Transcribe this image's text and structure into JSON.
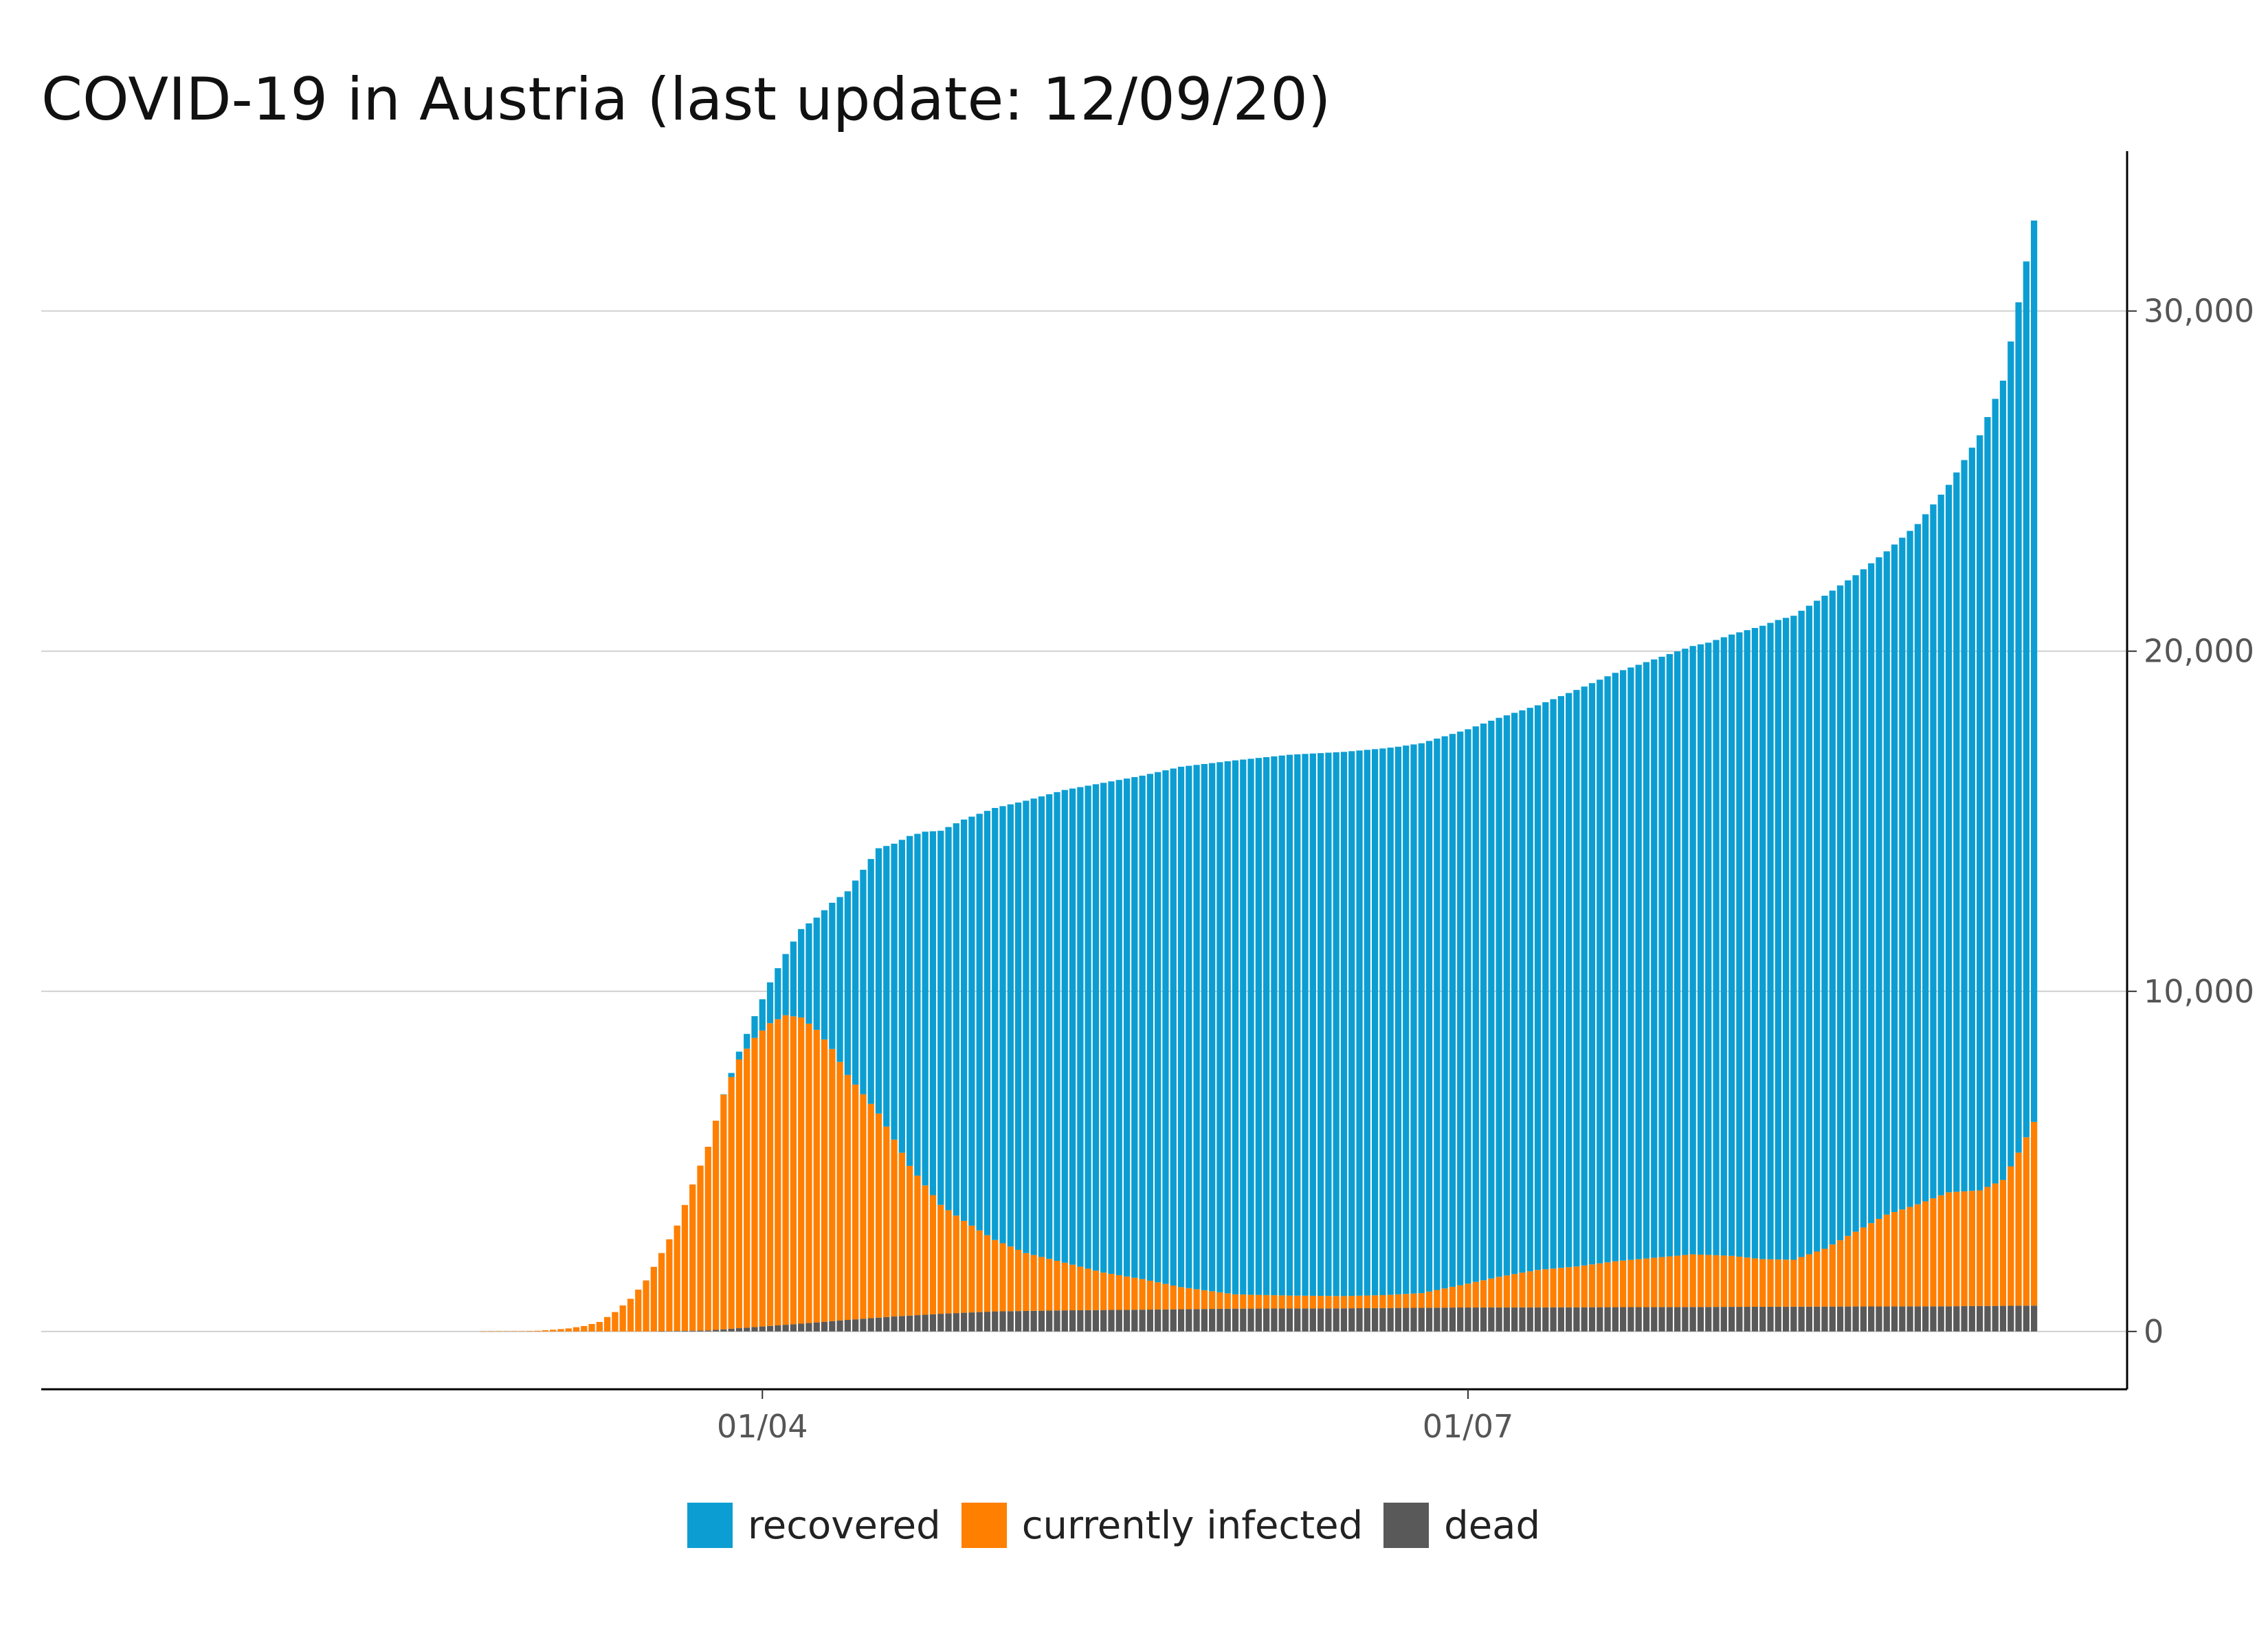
{
  "chart_data": {
    "type": "bar",
    "stacked": true,
    "title": "COVID-19 in Austria (last update: 12/09/20)",
    "xlabel": "",
    "ylabel": "",
    "x_start": "2020-01-01",
    "x_tick_labels": [
      {
        "date": "2020-04-01",
        "label": "01/04"
      },
      {
        "date": "2020-07-01",
        "label": "01/07"
      }
    ],
    "y_ticks": [
      0,
      10000,
      20000,
      30000
    ],
    "y_tick_labels": [
      "0",
      "10,000",
      "20,000",
      "30,000"
    ],
    "ylim": [
      -1700,
      34700
    ],
    "xlim": [
      "2019-12-30",
      "2020-09-24"
    ],
    "y_axis_position": "right",
    "grid": "horizontal",
    "legend_position": "bottom",
    "series": [
      {
        "name": "dead",
        "color": "#595959",
        "points": [
          [
            "2020-03-19",
            6
          ],
          [
            "2020-03-25",
            30
          ],
          [
            "2020-03-31",
            130
          ],
          [
            "2020-04-06",
            230
          ],
          [
            "2020-04-12",
            340
          ],
          [
            "2020-04-18",
            440
          ],
          [
            "2020-04-24",
            520
          ],
          [
            "2020-05-01",
            590
          ],
          [
            "2020-05-10",
            620
          ],
          [
            "2020-05-20",
            640
          ],
          [
            "2020-06-01",
            670
          ],
          [
            "2020-06-15",
            680
          ],
          [
            "2020-07-01",
            705
          ],
          [
            "2020-07-15",
            710
          ],
          [
            "2020-08-01",
            720
          ],
          [
            "2020-08-15",
            730
          ],
          [
            "2020-09-01",
            740
          ],
          [
            "2020-09-12",
            760
          ]
        ]
      },
      {
        "name": "currently infected",
        "color": "#ff7f00",
        "points": [
          [
            "2020-02-25",
            2
          ],
          [
            "2020-03-01",
            10
          ],
          [
            "2020-03-03",
            20
          ],
          [
            "2020-03-05",
            50
          ],
          [
            "2020-03-07",
            90
          ],
          [
            "2020-03-09",
            160
          ],
          [
            "2020-03-11",
            280
          ],
          [
            "2020-03-13",
            570
          ],
          [
            "2020-03-15",
            960
          ],
          [
            "2020-03-17",
            1500
          ],
          [
            "2020-03-19",
            2300
          ],
          [
            "2020-03-21",
            3100
          ],
          [
            "2020-03-23",
            4300
          ],
          [
            "2020-03-25",
            5400
          ],
          [
            "2020-03-27",
            6900
          ],
          [
            "2020-03-28",
            7400
          ],
          [
            "2020-03-29",
            7900
          ],
          [
            "2020-03-31",
            8500
          ],
          [
            "2020-04-02",
            8900
          ],
          [
            "2020-04-04",
            9100
          ],
          [
            "2020-04-06",
            9000
          ],
          [
            "2020-04-08",
            8600
          ],
          [
            "2020-04-10",
            8000
          ],
          [
            "2020-04-12",
            7200
          ],
          [
            "2020-04-14",
            6600
          ],
          [
            "2020-04-16",
            6000
          ],
          [
            "2020-04-18",
            5200
          ],
          [
            "2020-04-20",
            4400
          ],
          [
            "2020-04-22",
            3800
          ],
          [
            "2020-04-24",
            3200
          ],
          [
            "2020-04-27",
            2700
          ],
          [
            "2020-05-01",
            2100
          ],
          [
            "2020-05-05",
            1700
          ],
          [
            "2020-05-10",
            1400
          ],
          [
            "2020-05-15",
            1100
          ],
          [
            "2020-05-20",
            900
          ],
          [
            "2020-05-25",
            650
          ],
          [
            "2020-06-01",
            420
          ],
          [
            "2020-06-08",
            380
          ],
          [
            "2020-06-15",
            360
          ],
          [
            "2020-06-20",
            380
          ],
          [
            "2020-06-25",
            430
          ],
          [
            "2020-07-01",
            700
          ],
          [
            "2020-07-05",
            900
          ],
          [
            "2020-07-10",
            1100
          ],
          [
            "2020-07-15",
            1200
          ],
          [
            "2020-07-20",
            1350
          ],
          [
            "2020-07-25",
            1450
          ],
          [
            "2020-07-30",
            1550
          ],
          [
            "2020-08-04",
            1500
          ],
          [
            "2020-08-08",
            1400
          ],
          [
            "2020-08-12",
            1380
          ],
          [
            "2020-08-16",
            1700
          ],
          [
            "2020-08-20",
            2200
          ],
          [
            "2020-08-24",
            2700
          ],
          [
            "2020-08-28",
            3000
          ],
          [
            "2020-09-01",
            3350
          ],
          [
            "2020-09-05",
            3400
          ],
          [
            "2020-09-08",
            3700
          ],
          [
            "2020-09-10",
            4500
          ],
          [
            "2020-09-12",
            5400
          ]
        ]
      },
      {
        "name": "recovered",
        "color": "#0c9ed2",
        "points": [
          [
            "2020-03-27",
            10
          ],
          [
            "2020-03-29",
            230
          ],
          [
            "2020-03-31",
            640
          ],
          [
            "2020-04-02",
            1200
          ],
          [
            "2020-04-04",
            1800
          ],
          [
            "2020-04-06",
            2600
          ],
          [
            "2020-04-08",
            3300
          ],
          [
            "2020-04-10",
            4300
          ],
          [
            "2020-04-12",
            5400
          ],
          [
            "2020-04-14",
            6600
          ],
          [
            "2020-04-16",
            7800
          ],
          [
            "2020-04-18",
            8700
          ],
          [
            "2020-04-20",
            9700
          ],
          [
            "2020-04-22",
            10400
          ],
          [
            "2020-04-24",
            11000
          ],
          [
            "2020-04-27",
            11800
          ],
          [
            "2020-05-01",
            12700
          ],
          [
            "2020-05-05",
            13300
          ],
          [
            "2020-05-10",
            13900
          ],
          [
            "2020-05-15",
            14400
          ],
          [
            "2020-05-20",
            14800
          ],
          [
            "2020-05-25",
            15300
          ],
          [
            "2020-06-01",
            15700
          ],
          [
            "2020-06-08",
            15900
          ],
          [
            "2020-06-15",
            16000
          ],
          [
            "2020-06-22",
            16100
          ],
          [
            "2020-07-01",
            16300
          ],
          [
            "2020-07-10",
            16600
          ],
          [
            "2020-07-20",
            17300
          ],
          [
            "2020-08-01",
            18000
          ],
          [
            "2020-08-10",
            18800
          ],
          [
            "2020-08-16",
            19200
          ],
          [
            "2020-08-20",
            19300
          ],
          [
            "2020-08-24",
            19500
          ],
          [
            "2020-08-28",
            20000
          ],
          [
            "2020-09-01",
            20800
          ],
          [
            "2020-09-05",
            22200
          ],
          [
            "2020-09-08",
            23500
          ],
          [
            "2020-09-10",
            25000
          ],
          [
            "2020-09-12",
            26500
          ]
        ]
      }
    ]
  },
  "legend": {
    "items": [
      {
        "label": "recovered",
        "color": "#0c9ed2"
      },
      {
        "label": "currently infected",
        "color": "#ff7f00"
      },
      {
        "label": "dead",
        "color": "#595959"
      }
    ]
  }
}
